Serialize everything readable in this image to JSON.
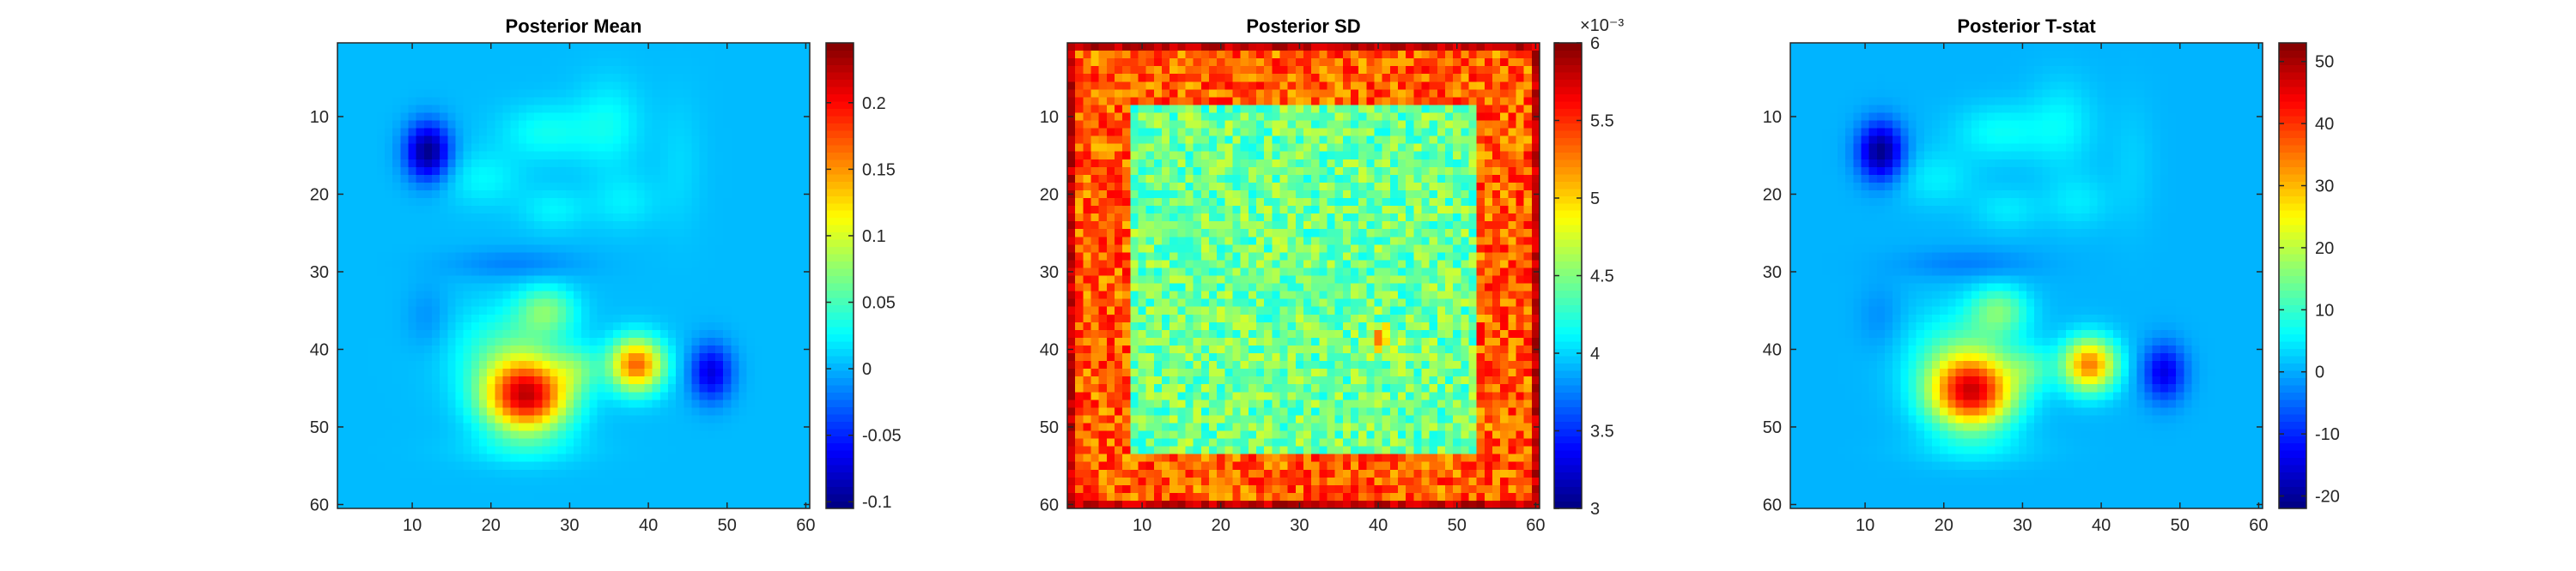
{
  "chart_data": [
    {
      "type": "heatmap",
      "title": "Posterior Mean",
      "grid_size": 60,
      "xticks": [
        10,
        20,
        30,
        40,
        50,
        60
      ],
      "yticks": [
        10,
        20,
        30,
        40,
        50,
        60
      ],
      "colormap": "jet",
      "clim": [
        -0.105,
        0.245
      ],
      "colorbar_ticks": [
        -0.1,
        -0.05,
        0,
        0.05,
        0.1,
        0.15,
        0.2
      ],
      "colorbar_tick_labels": [
        "-0.1",
        "-0.05",
        "0",
        "0.05",
        "0.1",
        "0.15",
        "0.2"
      ],
      "colorbar_multiplier": "",
      "background": 0.003,
      "blobs": [
        {
          "x": 12,
          "y": 14.5,
          "sx": 2.0,
          "sy": 2.6,
          "amp": -0.105
        },
        {
          "x": 19,
          "y": 18,
          "sx": 3.5,
          "sy": 2.5,
          "amp": 0.022
        },
        {
          "x": 27,
          "y": 12,
          "sx": 4,
          "sy": 2.5,
          "amp": 0.028
        },
        {
          "x": 35,
          "y": 11,
          "sx": 3,
          "sy": 4,
          "amp": 0.025
        },
        {
          "x": 28,
          "y": 22,
          "sx": 3,
          "sy": 2,
          "amp": 0.02
        },
        {
          "x": 23,
          "y": 29,
          "sx": 6,
          "sy": 1.4,
          "amp": -0.02
        },
        {
          "x": 37,
          "y": 21,
          "sx": 3,
          "sy": 2.5,
          "amp": 0.018
        },
        {
          "x": 44,
          "y": 16,
          "sx": 2,
          "sy": 6,
          "amp": 0.01
        },
        {
          "x": 22,
          "y": 40,
          "sx": 5,
          "sy": 4,
          "amp": 0.04
        },
        {
          "x": 27,
          "y": 35,
          "sx": 2.6,
          "sy": 2.2,
          "amp": 0.06
        },
        {
          "x": 24.5,
          "y": 46,
          "sx": 3.8,
          "sy": 3.3,
          "amp": 0.21
        },
        {
          "x": 31,
          "y": 42.5,
          "sx": 2,
          "sy": 2,
          "amp": 0.04
        },
        {
          "x": 38.5,
          "y": 42,
          "sx": 2.4,
          "sy": 2.4,
          "amp": 0.165
        },
        {
          "x": 48,
          "y": 43,
          "sx": 1.9,
          "sy": 2.6,
          "amp": -0.075
        },
        {
          "x": 24,
          "y": 53,
          "sx": 6,
          "sy": 1.5,
          "amp": 0.015
        },
        {
          "x": 12,
          "y": 36,
          "sx": 2,
          "sy": 3,
          "amp": -0.015
        }
      ]
    },
    {
      "type": "heatmap",
      "title": "Posterior SD",
      "grid_size": 60,
      "xticks": [
        10,
        20,
        30,
        40,
        50,
        60
      ],
      "yticks": [
        10,
        20,
        30,
        40,
        50,
        60
      ],
      "colormap": "jet",
      "clim": [
        3.0,
        6.0
      ],
      "colorbar_ticks": [
        3,
        3.5,
        4,
        4.5,
        5,
        5.5,
        6
      ],
      "colorbar_tick_labels": [
        "3",
        "3.5",
        "4",
        "4.5",
        "5",
        "5.5",
        "6"
      ],
      "colorbar_multiplier": "×10⁻³",
      "edge_value": 5.8,
      "outer_value": 5.35,
      "inner_value": 4.45,
      "inner_region": {
        "x": [
          9,
          52
        ],
        "y": [
          9,
          53
        ]
      },
      "noise": 0.3,
      "hotspot": {
        "x": 40.5,
        "y": 38.5,
        "amp": 0.8
      }
    },
    {
      "type": "heatmap",
      "title": "Posterior T-stat",
      "grid_size": 60,
      "xticks": [
        10,
        20,
        30,
        40,
        50,
        60
      ],
      "yticks": [
        10,
        20,
        30,
        40,
        50,
        60
      ],
      "colormap": "jet",
      "clim": [
        -22,
        53
      ],
      "colorbar_ticks": [
        -20,
        -10,
        0,
        10,
        20,
        30,
        40,
        50
      ],
      "colorbar_tick_labels": [
        "-20",
        "-10",
        "0",
        "10",
        "20",
        "30",
        "40",
        "50"
      ],
      "colorbar_multiplier": "",
      "background": 0.6,
      "blobs": [
        {
          "x": 12,
          "y": 14.5,
          "sx": 2.0,
          "sy": 2.6,
          "amp": -22
        },
        {
          "x": 19,
          "y": 18,
          "sx": 3.5,
          "sy": 2.5,
          "amp": 4.5
        },
        {
          "x": 27,
          "y": 12,
          "sx": 4,
          "sy": 2.5,
          "amp": 6
        },
        {
          "x": 35,
          "y": 11,
          "sx": 3,
          "sy": 4,
          "amp": 5
        },
        {
          "x": 28,
          "y": 22,
          "sx": 3,
          "sy": 2,
          "amp": 4
        },
        {
          "x": 23,
          "y": 29,
          "sx": 6,
          "sy": 1.4,
          "amp": -4
        },
        {
          "x": 37,
          "y": 21,
          "sx": 3,
          "sy": 2.5,
          "amp": 4
        },
        {
          "x": 44,
          "y": 16,
          "sx": 2,
          "sy": 6,
          "amp": 2
        },
        {
          "x": 22,
          "y": 40,
          "sx": 5,
          "sy": 4,
          "amp": 8
        },
        {
          "x": 27,
          "y": 35,
          "sx": 2.6,
          "sy": 2.2,
          "amp": 13
        },
        {
          "x": 23.5,
          "y": 45.5,
          "sx": 3.8,
          "sy": 3.3,
          "amp": 44
        },
        {
          "x": 31,
          "y": 42.5,
          "sx": 2,
          "sy": 2,
          "amp": 8
        },
        {
          "x": 38.5,
          "y": 42,
          "sx": 2.4,
          "sy": 2.4,
          "amp": 34
        },
        {
          "x": 48,
          "y": 43,
          "sx": 1.9,
          "sy": 2.6,
          "amp": -15
        },
        {
          "x": 24,
          "y": 53,
          "sx": 6,
          "sy": 1.5,
          "amp": 3
        },
        {
          "x": 12,
          "y": 36,
          "sx": 2,
          "sy": 3,
          "amp": -3
        }
      ]
    }
  ]
}
